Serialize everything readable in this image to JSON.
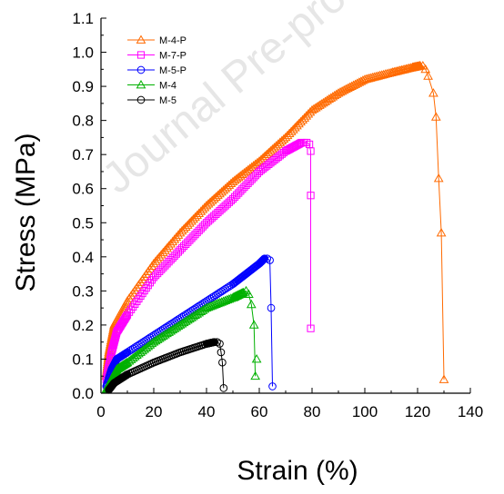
{
  "watermark": "Journal Pre-proof",
  "chart_data": {
    "type": "line",
    "xlabel": "Strain  (%)",
    "ylabel": "Stress  (MPa)",
    "xlim": [
      0,
      140
    ],
    "ylim": [
      0,
      1.1
    ],
    "xticks": [
      "0",
      "20",
      "40",
      "60",
      "80",
      "100",
      "120",
      "140"
    ],
    "yticks": [
      "0.0",
      "0.1",
      "0.2",
      "0.3",
      "0.4",
      "0.5",
      "0.6",
      "0.7",
      "0.8",
      "0.9",
      "1.0",
      "1.1"
    ],
    "legend_position": "top-left",
    "series": [
      {
        "name": "M-4-P",
        "color": "#ff6a00",
        "marker": "triangle",
        "x": [
          2,
          3,
          5,
          10,
          20,
          30,
          40,
          50,
          60,
          70,
          80,
          90,
          100,
          110,
          118,
          121
        ],
        "y": [
          0.05,
          0.12,
          0.2,
          0.27,
          0.38,
          0.47,
          0.55,
          0.62,
          0.68,
          0.75,
          0.83,
          0.88,
          0.92,
          0.94,
          0.955,
          0.96
        ],
        "tail_x": [
          122,
          123,
          124,
          126,
          127,
          128,
          129,
          130
        ],
        "tail_y": [
          0.96,
          0.95,
          0.93,
          0.88,
          0.81,
          0.63,
          0.47,
          0.04
        ]
      },
      {
        "name": "M-7-P",
        "color": "#ff00ff",
        "marker": "square",
        "x": [
          2,
          4,
          6,
          10,
          20,
          30,
          40,
          50,
          60,
          70,
          76
        ],
        "y": [
          0.04,
          0.12,
          0.18,
          0.23,
          0.34,
          0.42,
          0.5,
          0.57,
          0.65,
          0.71,
          0.735
        ],
        "tail_x": [
          77,
          78,
          79,
          79.5,
          79.5,
          79.5
        ],
        "tail_y": [
          0.735,
          0.735,
          0.73,
          0.71,
          0.58,
          0.19
        ]
      },
      {
        "name": "M-5-P",
        "color": "#0000ff",
        "marker": "circle",
        "x": [
          2,
          4,
          6,
          10,
          20,
          30,
          40,
          50,
          55,
          60,
          62
        ],
        "y": [
          0.02,
          0.07,
          0.1,
          0.12,
          0.17,
          0.22,
          0.27,
          0.32,
          0.35,
          0.38,
          0.395
        ],
        "tail_x": [
          63,
          64,
          64.5,
          65
        ],
        "tail_y": [
          0.395,
          0.39,
          0.25,
          0.02
        ]
      },
      {
        "name": "M-4",
        "color": "#00b000",
        "marker": "triangle",
        "x": [
          2,
          4,
          6,
          10,
          20,
          30,
          40,
          50,
          54
        ],
        "y": [
          0.01,
          0.04,
          0.07,
          0.09,
          0.15,
          0.2,
          0.25,
          0.28,
          0.295
        ],
        "tail_x": [
          55,
          56,
          57,
          58,
          58.5
        ],
        "tail_y": [
          0.3,
          0.29,
          0.26,
          0.2,
          0.05
        ],
        "extra_x": [
          59
        ],
        "extra_y": [
          0.1
        ]
      },
      {
        "name": "M-5",
        "color": "#000000",
        "marker": "circle",
        "x": [
          3,
          5,
          8,
          10,
          20,
          30,
          40,
          43
        ],
        "y": [
          0.01,
          0.03,
          0.045,
          0.055,
          0.09,
          0.12,
          0.145,
          0.15
        ],
        "tail_x": [
          44,
          45,
          45.5,
          46,
          46.5
        ],
        "tail_y": [
          0.15,
          0.145,
          0.12,
          0.09,
          0.015
        ]
      }
    ]
  }
}
